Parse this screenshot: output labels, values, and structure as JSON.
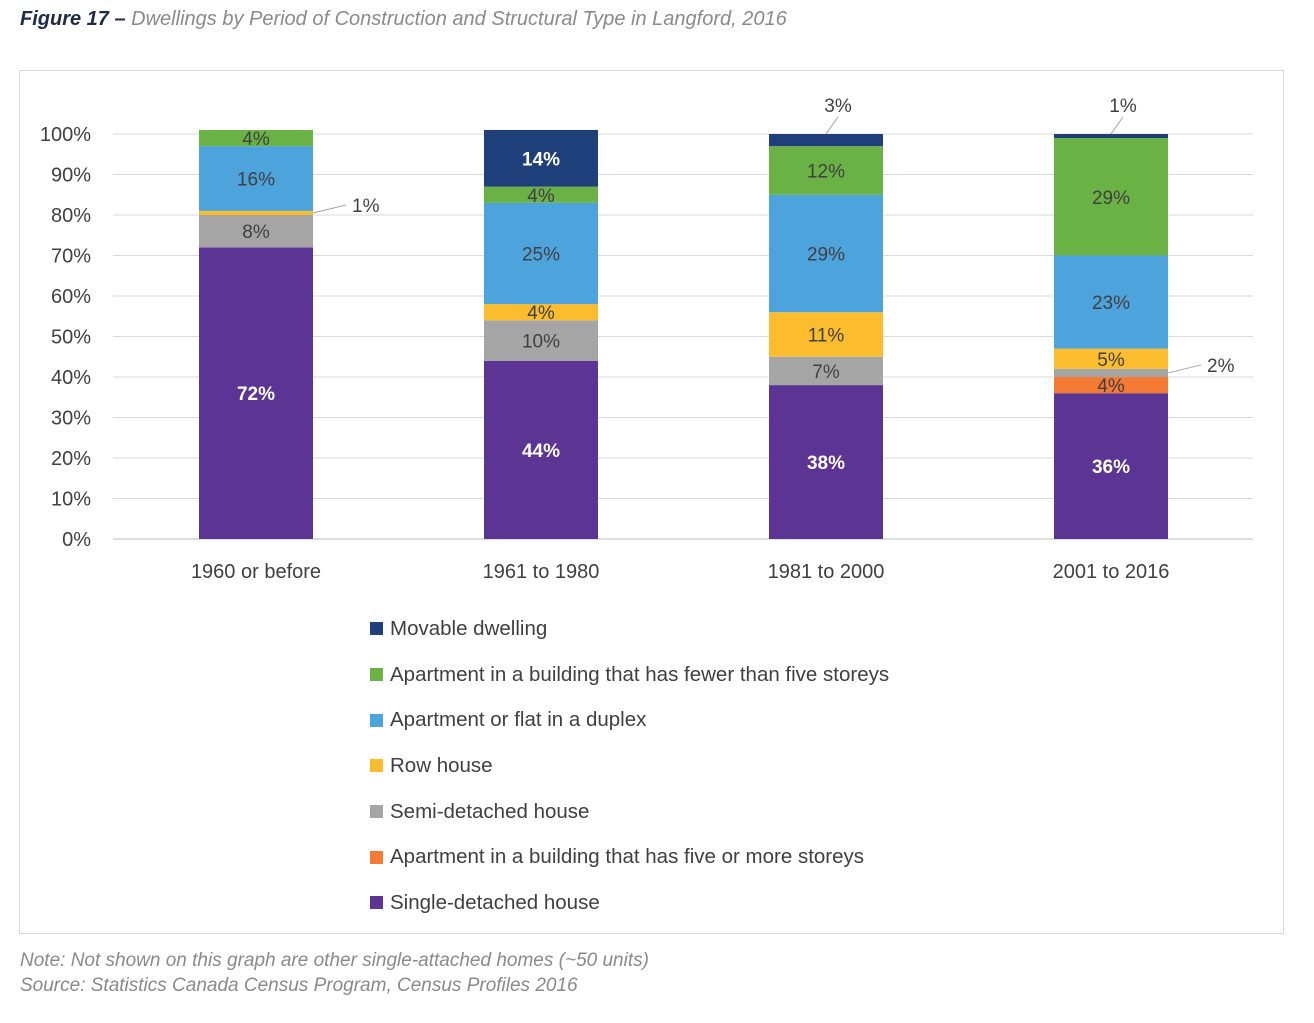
{
  "figure": {
    "number": "Figure 17 –",
    "title": "Dwellings by Period of Construction and Structural Type in Langford, 2016"
  },
  "chart_data": {
    "type": "bar",
    "stacked": true,
    "title": "Dwellings by Period of Construction and Structural Type in Langford, 2016",
    "xlabel": "",
    "ylabel": "",
    "ylim": [
      0,
      100
    ],
    "yticks": [
      "0%",
      "10%",
      "20%",
      "30%",
      "40%",
      "50%",
      "60%",
      "70%",
      "80%",
      "90%",
      "100%"
    ],
    "categories": [
      "1960 or before",
      "1961 to 1980",
      "1981 to 2000",
      "2001 to 2016"
    ],
    "legend_position": "bottom",
    "series": [
      {
        "name": "Single-detached house",
        "color": "#5b3494",
        "text_color": "#ffffff",
        "values": [
          72,
          44,
          38,
          36
        ],
        "labels": [
          "72%",
          "44%",
          "38%",
          "36%"
        ]
      },
      {
        "name": "Apartment in a building that has five or more storeys",
        "color": "#f57b34",
        "text_color": "#404040",
        "values": [
          0,
          0,
          0,
          4
        ],
        "labels": [
          "",
          "",
          "",
          "4%"
        ]
      },
      {
        "name": "Semi-detached house",
        "color": "#a5a5a5",
        "text_color": "#404040",
        "values": [
          8,
          10,
          7,
          2
        ],
        "labels": [
          "8%",
          "10%",
          "7%",
          ""
        ]
      },
      {
        "name": "Row house",
        "color": "#fbbd2e",
        "text_color": "#404040",
        "values": [
          1,
          4,
          11,
          5
        ],
        "labels": [
          "",
          "4%",
          "11%",
          "5%"
        ]
      },
      {
        "name": "Apartment or flat in a duplex",
        "color": "#4da3dc",
        "text_color": "#404040",
        "values": [
          16,
          25,
          29,
          23
        ],
        "labels": [
          "16%",
          "25%",
          "29%",
          "23%"
        ]
      },
      {
        "name": "Apartment in a building that has fewer than five storeys",
        "color": "#6ab245",
        "text_color": "#404040",
        "values": [
          4,
          4,
          12,
          29
        ],
        "labels": [
          "4%",
          "4%",
          "12%",
          "29%"
        ]
      },
      {
        "name": "Movable dwelling",
        "color": "#1f3f7a",
        "text_color": "#ffffff",
        "values": [
          0,
          14,
          3,
          1
        ],
        "labels": [
          "",
          "14%",
          "",
          ""
        ]
      }
    ],
    "callouts": [
      {
        "category": "1960 or before",
        "series": "Row house",
        "label": "1%"
      },
      {
        "category": "1981 to 2000",
        "series": "Movable dwelling",
        "label": "3%"
      },
      {
        "category": "2001 to 2016",
        "series": "Movable dwelling",
        "label": "1%"
      },
      {
        "category": "2001 to 2016",
        "series": "Semi-detached house",
        "label": "2%"
      }
    ]
  },
  "legend": {
    "items": [
      {
        "label": "Movable dwelling",
        "color": "#1f3f7a"
      },
      {
        "label": "Apartment in a building that has fewer than five storeys",
        "color": "#6ab245"
      },
      {
        "label": "Apartment or flat in a duplex",
        "color": "#4da3dc"
      },
      {
        "label": "Row house",
        "color": "#fbbd2e"
      },
      {
        "label": "Semi-detached house",
        "color": "#a5a5a5"
      },
      {
        "label": "Apartment in a building that has five or more storeys",
        "color": "#f57b34"
      },
      {
        "label": "Single-detached house",
        "color": "#5b3494"
      }
    ]
  },
  "notes": {
    "note": "Note: Not shown on this graph are other single-attached homes (~50 units)",
    "source": "Source: Statistics Canada Census Program, Census Profiles 2016"
  }
}
